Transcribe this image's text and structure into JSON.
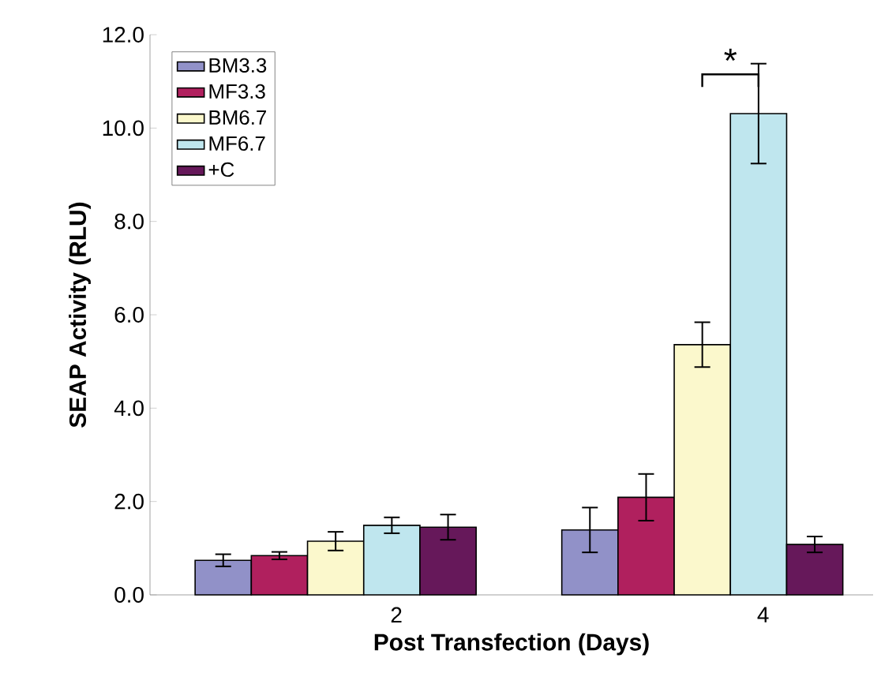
{
  "chart_data": {
    "type": "bar",
    "xlabel": "Post Transfection (Days)",
    "ylabel": "SEAP Activity (RLU)",
    "categories": [
      "2",
      "4"
    ],
    "series": [
      {
        "name": "BM3.3",
        "color": "#9191c8",
        "values": [
          0.74,
          1.39
        ],
        "errors": [
          0.13,
          0.48
        ]
      },
      {
        "name": "MF3.3",
        "color": "#b0205e",
        "values": [
          0.84,
          2.09
        ],
        "errors": [
          0.08,
          0.5
        ]
      },
      {
        "name": "BM6.7",
        "color": "#fbf8cc",
        "values": [
          1.15,
          5.36
        ],
        "errors": [
          0.2,
          0.48
        ]
      },
      {
        "name": "MF6.7",
        "color": "#bfe6ee",
        "values": [
          1.49,
          10.31
        ],
        "errors": [
          0.17,
          1.07
        ]
      },
      {
        "name": "+C",
        "color": "#66185a",
        "values": [
          1.45,
          1.08
        ],
        "errors": [
          0.27,
          0.17
        ]
      }
    ],
    "ylim": [
      0,
      12
    ],
    "yticks": [
      {
        "value": 0,
        "label": "0.0"
      },
      {
        "value": 2,
        "label": "2.0"
      },
      {
        "value": 4,
        "label": "4.0"
      },
      {
        "value": 6,
        "label": "6.0"
      },
      {
        "value": 8,
        "label": "8.0"
      },
      {
        "value": 10,
        "label": "10.0"
      },
      {
        "value": 12,
        "label": "12.0"
      }
    ],
    "legend": "top left",
    "annotations": [
      {
        "text": "*",
        "x": "4",
        "y": 11.15
      }
    ]
  }
}
